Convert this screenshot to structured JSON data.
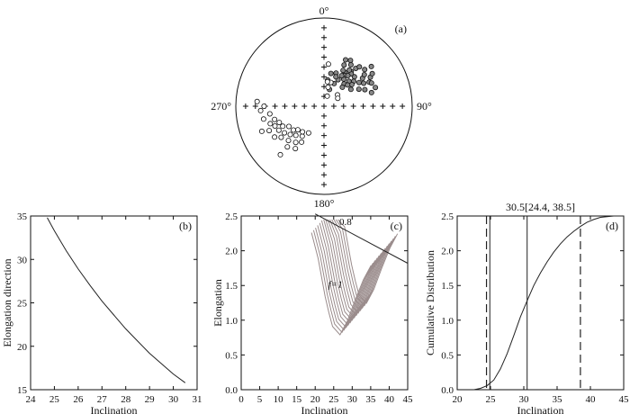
{
  "chart_data": [
    {
      "type": "scatter",
      "panel": "(a)",
      "dir_labels": [
        "0°",
        "90°",
        "180°",
        "270°"
      ],
      "filled_points": [
        [
          8,
          30
        ],
        [
          12,
          38
        ],
        [
          18,
          20
        ],
        [
          20,
          40
        ],
        [
          24,
          28
        ],
        [
          26,
          52
        ],
        [
          30,
          60
        ],
        [
          28,
          34
        ],
        [
          32,
          45
        ],
        [
          34,
          42
        ],
        [
          36,
          38
        ],
        [
          38,
          50
        ],
        [
          40,
          56
        ],
        [
          42,
          34
        ],
        [
          44,
          30
        ],
        [
          46,
          48
        ],
        [
          48,
          62
        ],
        [
          50,
          44
        ],
        [
          52,
          40
        ],
        [
          54,
          54
        ],
        [
          56,
          48
        ],
        [
          58,
          36
        ],
        [
          60,
          52
        ],
        [
          62,
          58
        ],
        [
          64,
          44
        ],
        [
          68,
          50
        ],
        [
          70,
          62
        ],
        [
          74,
          56
        ],
        [
          50,
          70
        ],
        [
          58,
          62
        ],
        [
          40,
          48
        ],
        [
          45,
          40
        ],
        [
          38,
          44
        ],
        [
          35,
          50
        ],
        [
          42,
          60
        ],
        [
          52,
          58
        ],
        [
          30,
          40
        ],
        [
          22,
          36
        ],
        [
          28,
          46
        ],
        [
          48,
          36
        ],
        [
          56,
          66
        ],
        [
          64,
          60
        ],
        [
          33,
          56
        ],
        [
          25,
          58
        ]
      ],
      "open_points": [
        [
          12,
          22
        ],
        [
          18,
          12
        ],
        [
          16,
          28
        ],
        [
          8,
          28
        ],
        [
          6,
          48
        ],
        [
          50,
          20
        ],
        [
          60,
          18
        ],
        [
          210,
          35
        ],
        [
          212,
          48
        ],
        [
          214,
          58
        ],
        [
          216,
          42
        ],
        [
          218,
          52
        ],
        [
          220,
          38
        ],
        [
          222,
          62
        ],
        [
          224,
          46
        ],
        [
          226,
          56
        ],
        [
          228,
          40
        ],
        [
          230,
          50
        ],
        [
          232,
          44
        ],
        [
          234,
          60
        ],
        [
          236,
          54
        ],
        [
          238,
          66
        ],
        [
          240,
          46
        ],
        [
          242,
          58
        ],
        [
          244,
          52
        ],
        [
          246,
          68
        ],
        [
          248,
          60
        ],
        [
          250,
          54
        ],
        [
          252,
          64
        ],
        [
          255,
          58
        ],
        [
          258,
          70
        ],
        [
          262,
          62
        ],
        [
          266,
          72
        ],
        [
          270,
          68
        ],
        [
          274,
          76
        ],
        [
          248,
          76
        ],
        [
          222,
          74
        ]
      ]
    },
    {
      "type": "line",
      "panel": "(b)",
      "xlabel": "Inclination",
      "ylabel": "Elongation direction",
      "xlim": [
        24,
        31
      ],
      "ylim": [
        15,
        35
      ],
      "xticks": [
        "24",
        "25",
        "26",
        "27",
        "28",
        "29",
        "30",
        "31"
      ],
      "yticks": [
        "15",
        "20",
        "25",
        "30",
        "35"
      ],
      "x": [
        24.7,
        25.0,
        25.5,
        26.0,
        26.5,
        27.0,
        27.5,
        28.0,
        28.5,
        29.0,
        29.5,
        30.0,
        30.5
      ],
      "y": [
        34.8,
        33.3,
        31.0,
        28.9,
        27.0,
        25.2,
        23.6,
        22.0,
        20.6,
        19.2,
        18.0,
        16.8,
        15.8
      ]
    },
    {
      "type": "line",
      "panel": "(c)",
      "xlabel": "Inclination",
      "ylabel": "Elongation",
      "xlim": [
        0,
        45
      ],
      "ylim": [
        0,
        2.5
      ],
      "xticks": [
        "0",
        "5",
        "10",
        "15",
        "20",
        "25",
        "30",
        "35",
        "40",
        "45"
      ],
      "yticks": [
        "0.0",
        "0.5",
        "1.0",
        "1.5",
        "2.0",
        "2.5"
      ],
      "annotations": [
        "0.8",
        "f=1"
      ],
      "series": [
        {
          "x": [
            20,
            45
          ],
          "y": [
            2.53,
            1.82
          ]
        },
        {
          "x": [
            22.3,
            24.1,
            26.0,
            27.0,
            28.0,
            30.0,
            32.0,
            34.1,
            36.3,
            38.4
          ],
          "y": [
            2.47,
            2.1,
            1.55,
            1.32,
            1.12,
            1.0,
            1.2,
            1.5,
            1.79,
            2.0
          ]
        }
      ]
    },
    {
      "type": "line",
      "panel": "(d)",
      "title": "30.5[24.4, 38.5]",
      "xlabel": "Inclination",
      "ylabel": "Cumulative Distribution",
      "xlim": [
        20,
        45
      ],
      "ylim": [
        0,
        2.5
      ],
      "xticks": [
        "20",
        "25",
        "30",
        "35",
        "40",
        "45"
      ],
      "yticks": [
        "0.0",
        "0.5",
        "1.0",
        "1.5",
        "2.0",
        "2.5"
      ],
      "x": [
        22.5,
        23.5,
        24.5,
        25.5,
        26.5,
        27.5,
        28.5,
        29.5,
        30.5,
        31.5,
        32.5,
        33.5,
        34.5,
        35.5,
        36.5,
        37.5,
        38.5,
        39.5,
        40.5,
        41.5,
        42.5,
        43.5,
        45.0
      ],
      "y": [
        0.0,
        0.02,
        0.06,
        0.14,
        0.3,
        0.52,
        0.78,
        1.05,
        1.28,
        1.5,
        1.68,
        1.84,
        1.98,
        2.1,
        2.2,
        2.28,
        2.35,
        2.41,
        2.45,
        2.48,
        2.49,
        2.5,
        2.5
      ],
      "vlines_solid": [
        24.9,
        30.5
      ],
      "vlines_dashed": [
        24.4,
        38.5
      ]
    }
  ]
}
